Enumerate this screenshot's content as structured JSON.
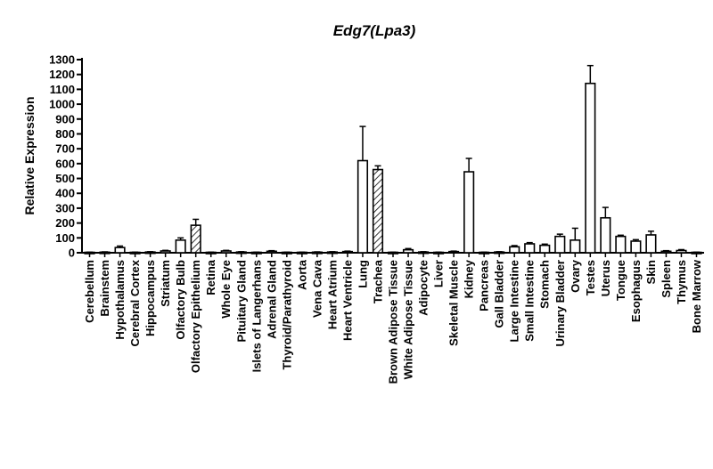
{
  "chart_data": {
    "type": "bar",
    "title": "Edg7(Lpa3)",
    "xlabel": "",
    "ylabel": "Relative Expression",
    "ylim": [
      0,
      1300
    ],
    "yticks": [
      0,
      100,
      200,
      300,
      400,
      500,
      600,
      700,
      800,
      900,
      1000,
      1100,
      1200,
      1300
    ],
    "grid": false,
    "categories": [
      "Cerebellum",
      "Brainstem",
      "Hypothalamus",
      "Cerebral Cortex",
      "Hippocampus",
      "Striatum",
      "Olfactory Bulb",
      "Olfactory Epithelium",
      "Retina",
      "Whole Eye",
      "Pituitary Gland",
      "Islets of Langerhans",
      "Adrenal Gland",
      "Thyroid/Parathyroid",
      "Aorta",
      "Vena Cava",
      "Heart Atrium",
      "Heart Ventricle",
      "Lung",
      "Trachea",
      "Brown Adipose Tissue",
      "White Adipose Tissue",
      "Adipocyte",
      "Liver",
      "Skeletal Muscle",
      "Kidney",
      "Pancreas",
      "Gall Bladder",
      "Large Intestine",
      "Small Intestine",
      "Stomach",
      "Urinary Bladder",
      "Ovary",
      "Testes",
      "Uterus",
      "Tongue",
      "Esophagus",
      "Skin",
      "Spleen",
      "Thymus",
      "Bone Marrow"
    ],
    "values": [
      3,
      4,
      35,
      3,
      5,
      12,
      85,
      185,
      3,
      12,
      5,
      3,
      10,
      3,
      3,
      4,
      5,
      8,
      620,
      560,
      3,
      20,
      5,
      3,
      8,
      545,
      3,
      5,
      40,
      60,
      50,
      110,
      85,
      1140,
      235,
      110,
      78,
      120,
      10,
      15,
      3
    ],
    "errors": [
      1,
      2,
      10,
      1,
      2,
      4,
      15,
      40,
      1,
      4,
      2,
      1,
      4,
      1,
      1,
      2,
      2,
      3,
      230,
      25,
      1,
      8,
      2,
      1,
      3,
      90,
      1,
      2,
      8,
      8,
      8,
      15,
      80,
      120,
      70,
      8,
      10,
      25,
      4,
      6,
      1
    ],
    "fills": [
      "plain",
      "plain",
      "plain",
      "plain",
      "plain",
      "plain",
      "plain",
      "hatch",
      "plain",
      "plain",
      "plain",
      "plain",
      "plain",
      "plain",
      "plain",
      "plain",
      "plain",
      "plain",
      "plain",
      "hatch",
      "plain",
      "plain",
      "plain",
      "plain",
      "plain",
      "plain",
      "plain",
      "plain",
      "plain",
      "plain",
      "plain",
      "plain",
      "plain",
      "plain",
      "plain",
      "plain",
      "plain",
      "plain",
      "plain",
      "plain",
      "plain"
    ],
    "colors": {
      "bar_stroke": "#000000",
      "bar_fill": "#ffffff",
      "axis": "#000000"
    }
  }
}
